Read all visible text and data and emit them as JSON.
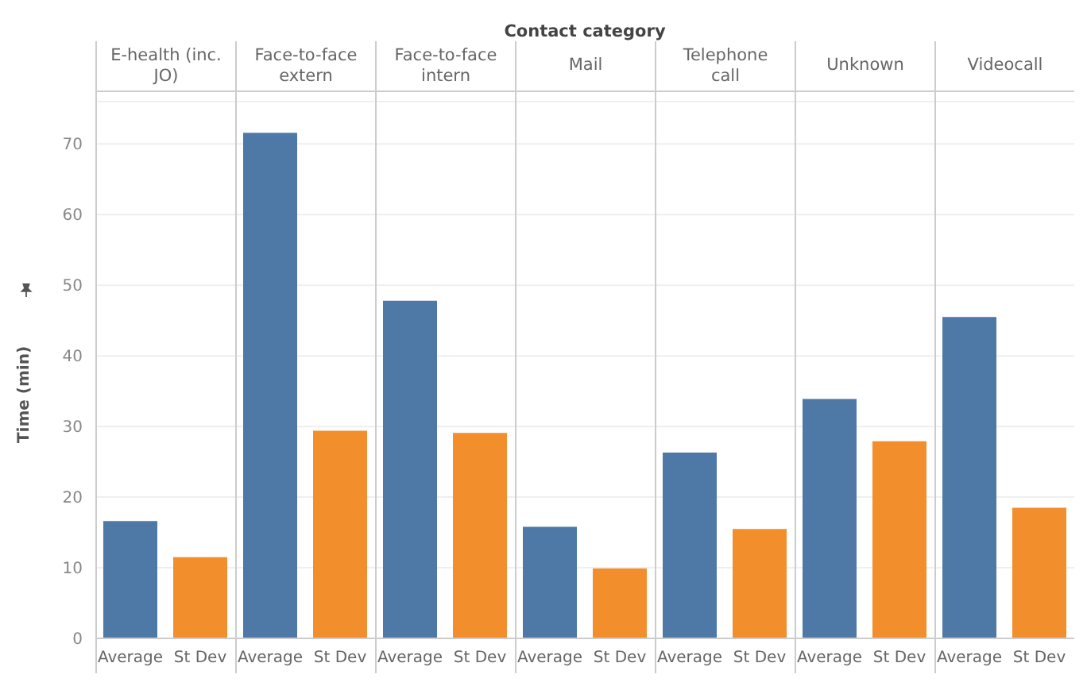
{
  "chart_data": [
    {
      "type": "bar",
      "title": "E-health (inc. JO)",
      "ylabel": "Time (min)",
      "annotations": [
        "Contact category"
      ],
      "categories": [
        "Average",
        "St Dev"
      ],
      "values": [
        16.6,
        11.5
      ],
      "colors": [
        "#4e79a7",
        "#f28e2b"
      ],
      "ylim": [
        0,
        76
      ],
      "yticks": [
        0,
        10,
        20,
        30,
        40,
        50,
        60,
        70
      ],
      "grid": "y"
    },
    {
      "type": "bar",
      "title": "Face-to-face extern",
      "categories": [
        "Average",
        "St Dev"
      ],
      "values": [
        71.6,
        29.4
      ],
      "colors": [
        "#4e79a7",
        "#f28e2b"
      ],
      "ylim": [
        0,
        76
      ],
      "yticks": [
        0,
        10,
        20,
        30,
        40,
        50,
        60,
        70
      ],
      "grid": "y",
      "tick_labels": "x"
    },
    {
      "type": "bar",
      "title": "Face-to-face intern",
      "categories": [
        "Average",
        "St Dev"
      ],
      "values": [
        47.8,
        29.1
      ],
      "colors": [
        "#4e79a7",
        "#f28e2b"
      ],
      "ylim": [
        0,
        76
      ],
      "yticks": [
        0,
        10,
        20,
        30,
        40,
        50,
        60,
        70
      ],
      "grid": "y",
      "tick_labels": "x"
    },
    {
      "type": "bar",
      "title": "Mail",
      "categories": [
        "Average",
        "St Dev"
      ],
      "values": [
        15.8,
        9.9
      ],
      "colors": [
        "#4e79a7",
        "#f28e2b"
      ],
      "ylim": [
        0,
        76
      ],
      "yticks": [
        0,
        10,
        20,
        30,
        40,
        50,
        60,
        70
      ],
      "grid": "y",
      "tick_labels": "x"
    },
    {
      "type": "bar",
      "title": "Telephone call",
      "categories": [
        "Average",
        "St Dev"
      ],
      "values": [
        26.3,
        15.5
      ],
      "colors": [
        "#4e79a7",
        "#f28e2b"
      ],
      "ylim": [
        0,
        76
      ],
      "yticks": [
        0,
        10,
        20,
        30,
        40,
        50,
        60,
        70
      ],
      "grid": "y",
      "tick_labels": "x"
    },
    {
      "type": "bar",
      "title": "Unknown",
      "categories": [
        "Average",
        "St Dev"
      ],
      "values": [
        33.9,
        27.9
      ],
      "colors": [
        "#4e79a7",
        "#f28e2b"
      ],
      "ylim": [
        0,
        76
      ],
      "yticks": [
        0,
        10,
        20,
        30,
        40,
        50,
        60,
        70
      ],
      "grid": "y",
      "tick_labels": "x"
    },
    {
      "type": "bar",
      "title": "Videocall",
      "categories": [
        "Average",
        "St Dev"
      ],
      "values": [
        45.5,
        18.5
      ],
      "colors": [
        "#4e79a7",
        "#f28e2b"
      ],
      "ylim": [
        0,
        76
      ],
      "yticks": [
        0,
        10,
        20,
        30,
        40,
        50,
        60,
        70
      ],
      "grid": "y",
      "tick_labels": "x"
    }
  ]
}
